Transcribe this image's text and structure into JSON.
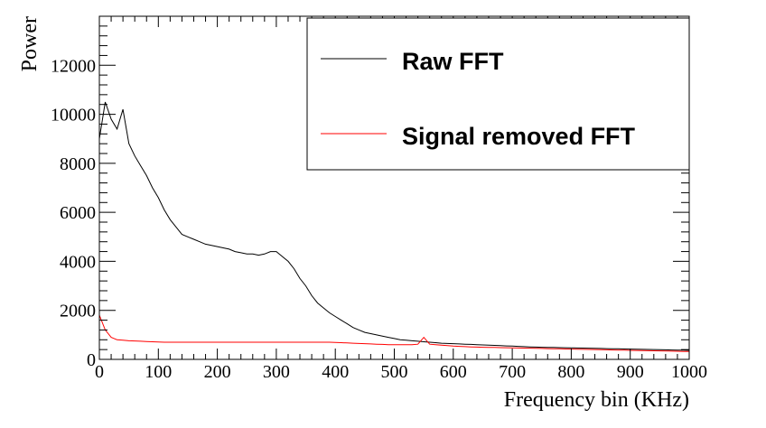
{
  "chart_data": {
    "type": "line",
    "xlabel": "Frequency bin (KHz)",
    "ylabel": "Power",
    "xlim": [
      0,
      1000
    ],
    "ylim": [
      0,
      14000
    ],
    "x_ticks": [
      0,
      100,
      200,
      300,
      400,
      500,
      600,
      700,
      800,
      900,
      1000
    ],
    "y_ticks": [
      0,
      2000,
      4000,
      6000,
      8000,
      10000,
      12000
    ],
    "grid": false,
    "legend_position": "top-right",
    "series": [
      {
        "name": "Raw FFT",
        "color": "#000000",
        "x": [
          0,
          10,
          20,
          30,
          40,
          50,
          60,
          70,
          80,
          90,
          100,
          110,
          120,
          130,
          140,
          150,
          160,
          170,
          180,
          190,
          200,
          210,
          220,
          230,
          240,
          250,
          260,
          270,
          280,
          290,
          300,
          310,
          320,
          330,
          340,
          350,
          360,
          370,
          380,
          390,
          400,
          410,
          420,
          430,
          440,
          450,
          460,
          470,
          480,
          490,
          500,
          510,
          520,
          530,
          540,
          550,
          560,
          570,
          580,
          590,
          600,
          610,
          620,
          630,
          640,
          650,
          660,
          670,
          680,
          690,
          700,
          710,
          720,
          730,
          740,
          750,
          760,
          770,
          780,
          790,
          800,
          810,
          820,
          830,
          840,
          850,
          860,
          870,
          880,
          890,
          900,
          910,
          920,
          930,
          940,
          950,
          960,
          970,
          980,
          990,
          1000
        ],
        "values": [
          9000,
          10500,
          9800,
          9400,
          10200,
          8800,
          8300,
          7900,
          7500,
          7000,
          6600,
          6100,
          5700,
          5400,
          5100,
          5000,
          4900,
          4800,
          4700,
          4650,
          4600,
          4550,
          4500,
          4400,
          4350,
          4300,
          4300,
          4250,
          4300,
          4400,
          4400,
          4200,
          4000,
          3700,
          3300,
          3000,
          2600,
          2300,
          2100,
          1900,
          1750,
          1600,
          1450,
          1300,
          1200,
          1100,
          1050,
          1000,
          950,
          900,
          850,
          800,
          780,
          760,
          740,
          720,
          700,
          680,
          660,
          650,
          640,
          630,
          620,
          610,
          600,
          590,
          580,
          570,
          560,
          550,
          540,
          530,
          520,
          510,
          500,
          495,
          490,
          485,
          480,
          475,
          470,
          465,
          460,
          455,
          450,
          445,
          440,
          435,
          430,
          425,
          420,
          415,
          410,
          405,
          400,
          395,
          390,
          385,
          380,
          375,
          370
        ]
      },
      {
        "name": "Signal removed FFT",
        "color": "#ff0000",
        "x": [
          0,
          10,
          20,
          30,
          40,
          50,
          60,
          70,
          80,
          90,
          100,
          110,
          120,
          130,
          140,
          150,
          160,
          170,
          180,
          190,
          200,
          210,
          220,
          230,
          240,
          250,
          260,
          270,
          280,
          290,
          300,
          310,
          320,
          330,
          340,
          350,
          360,
          370,
          380,
          390,
          400,
          410,
          420,
          430,
          440,
          450,
          460,
          470,
          480,
          490,
          500,
          510,
          520,
          530,
          540,
          550,
          560,
          570,
          580,
          590,
          600,
          610,
          620,
          630,
          640,
          650,
          660,
          670,
          680,
          690,
          700,
          710,
          720,
          730,
          740,
          750,
          760,
          770,
          780,
          790,
          800,
          810,
          820,
          830,
          840,
          850,
          860,
          870,
          880,
          890,
          900,
          910,
          920,
          930,
          940,
          950,
          960,
          970,
          980,
          990,
          1000
        ],
        "values": [
          1800,
          1200,
          900,
          800,
          780,
          760,
          750,
          740,
          730,
          720,
          710,
          700,
          700,
          700,
          700,
          700,
          700,
          700,
          700,
          700,
          700,
          700,
          700,
          700,
          700,
          700,
          700,
          700,
          700,
          700,
          700,
          700,
          700,
          700,
          700,
          700,
          700,
          700,
          700,
          700,
          690,
          680,
          670,
          660,
          650,
          640,
          630,
          620,
          610,
          600,
          600,
          600,
          600,
          600,
          620,
          900,
          620,
          600,
          580,
          560,
          540,
          530,
          520,
          510,
          500,
          495,
          490,
          485,
          480,
          475,
          470,
          465,
          460,
          455,
          450,
          445,
          440,
          435,
          430,
          425,
          420,
          415,
          410,
          405,
          400,
          395,
          390,
          385,
          380,
          375,
          370,
          365,
          360,
          355,
          350,
          345,
          340,
          335,
          330,
          325,
          320
        ]
      }
    ]
  }
}
